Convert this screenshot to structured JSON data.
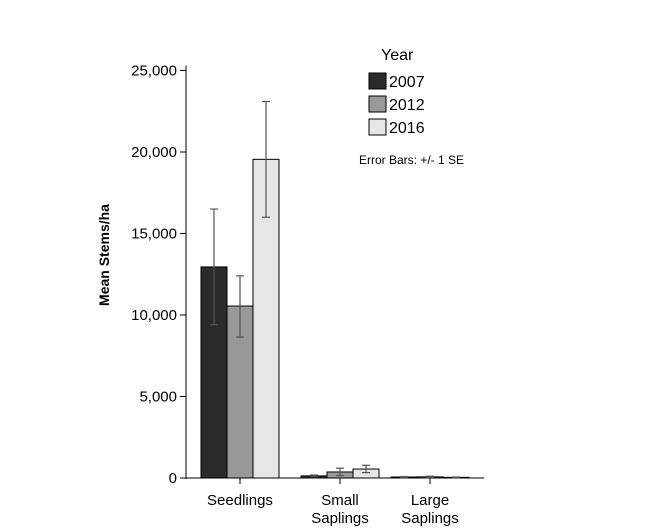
{
  "chart_data": {
    "type": "bar",
    "ylabel": "Mean Stems/ha",
    "ylim": [
      0,
      25000
    ],
    "yticks": [
      0,
      5000,
      10000,
      15000,
      20000,
      25000
    ],
    "ytick_labels": [
      "0",
      "5,000",
      "10,000",
      "15,000",
      "20,000",
      "25,000"
    ],
    "categories": [
      [
        "Seedlings"
      ],
      [
        "Small",
        "Saplings"
      ],
      [
        "Large",
        "Saplings"
      ]
    ],
    "legend_title": "Year",
    "legend_position": "top-right",
    "annotation": "Error Bars: +/- 1 SE",
    "grid": false,
    "series": [
      {
        "name": "2007",
        "color": "#2b2b2b",
        "values": [
          12950,
          130,
          60
        ],
        "err_low": [
          9400,
          80,
          30
        ],
        "err_high": [
          16500,
          180,
          90
        ]
      },
      {
        "name": "2012",
        "color": "#999999",
        "values": [
          10550,
          370,
          70
        ],
        "err_low": [
          8650,
          150,
          30
        ],
        "err_high": [
          12400,
          600,
          110
        ]
      },
      {
        "name": "2016",
        "color": "#e6e6e6",
        "values": [
          19550,
          550,
          40
        ],
        "err_low": [
          16000,
          330,
          20
        ],
        "err_high": [
          23100,
          780,
          60
        ]
      }
    ]
  }
}
